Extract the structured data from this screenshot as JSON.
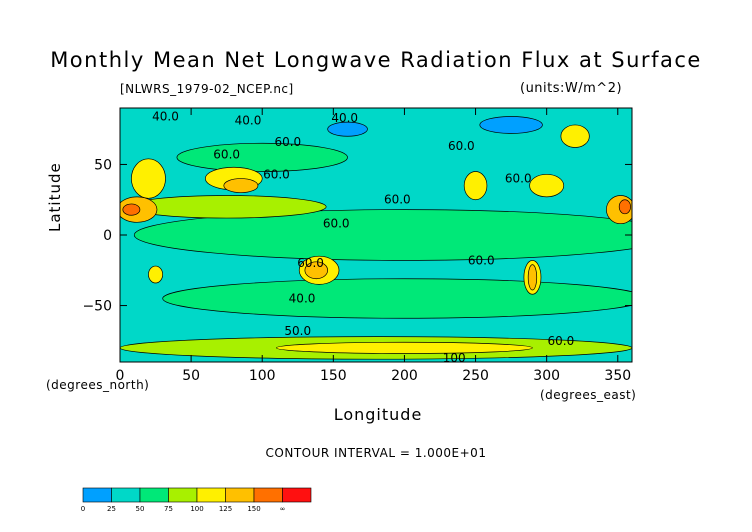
{
  "title": "Monthly Mean Net Longwave Radiation Flux at Surface",
  "subtitle_left": "[NLWRS_1979-02_NCEP.nc]",
  "subtitle_right": "(units:W/m^2)",
  "xlabel": "Longitude",
  "ylabel": "Latitude",
  "xunit": "(degrees_north)",
  "yunit": "(degrees_east)",
  "contour_interval_text": "CONTOUR INTERVAL = 1.000E+01",
  "chart_data": {
    "type": "heatmap",
    "title": "Monthly Mean Net Longwave Radiation Flux at Surface",
    "subtitle": "[NLWRS_1979-02_NCEP.nc]",
    "units": "(units:W/m^2)",
    "xlabel": "Longitude",
    "ylabel": "Latitude",
    "xlim": [
      0,
      360
    ],
    "ylim": [
      -90,
      90
    ],
    "x_ticks": [
      0,
      50,
      100,
      150,
      200,
      250,
      300,
      350
    ],
    "y_ticks": [
      50,
      0,
      -50
    ],
    "contour_interval": 10,
    "contour_labels": [
      {
        "text": "40.0",
        "lon": 32,
        "lat": 84
      },
      {
        "text": "40.0",
        "lon": 90,
        "lat": 81
      },
      {
        "text": "40.0",
        "lon": 158,
        "lat": 83
      },
      {
        "text": "60.0",
        "lon": 118,
        "lat": 66
      },
      {
        "text": "60.0",
        "lon": 240,
        "lat": 63
      },
      {
        "text": "60.0",
        "lon": 110,
        "lat": 43
      },
      {
        "text": "60.0",
        "lon": 280,
        "lat": 40
      },
      {
        "text": "60.0",
        "lon": 195,
        "lat": 25
      },
      {
        "text": "60.0",
        "lon": 152,
        "lat": 8
      },
      {
        "text": "60.0",
        "lon": 75,
        "lat": 57
      },
      {
        "text": "60.0",
        "lon": 134,
        "lat": -20
      },
      {
        "text": "60.0",
        "lon": 254,
        "lat": -18
      },
      {
        "text": "40.0",
        "lon": 128,
        "lat": -45
      },
      {
        "text": "50.0",
        "lon": 125,
        "lat": -68
      },
      {
        "text": "60.0",
        "lon": 310,
        "lat": -75
      },
      {
        "text": "100",
        "lon": 235,
        "lat": -87
      }
    ],
    "regions": [
      {
        "level": 1,
        "lon": 180,
        "lat": 0,
        "rx": 180,
        "ry": 90
      },
      {
        "level": 2,
        "lon": 200,
        "lat": 0,
        "rx": 190,
        "ry": 18
      },
      {
        "level": 2,
        "lon": 200,
        "lat": -45,
        "rx": 170,
        "ry": 14
      },
      {
        "level": 2,
        "lon": 100,
        "lat": 55,
        "rx": 60,
        "ry": 10
      },
      {
        "level": 0,
        "lon": 160,
        "lat": 75,
        "rx": 14,
        "ry": 5
      },
      {
        "level": 0,
        "lon": 275,
        "lat": 78,
        "rx": 22,
        "ry": 6
      },
      {
        "level": 3,
        "lon": 75,
        "lat": 20,
        "rx": 70,
        "ry": 8
      },
      {
        "level": 3,
        "lon": 180,
        "lat": -80,
        "rx": 180,
        "ry": 8
      },
      {
        "level": 4,
        "lon": 200,
        "lat": -80,
        "rx": 90,
        "ry": 4
      },
      {
        "level": 4,
        "lon": 20,
        "lat": 40,
        "rx": 12,
        "ry": 14
      },
      {
        "level": 4,
        "lon": 80,
        "lat": 40,
        "rx": 20,
        "ry": 8
      },
      {
        "level": 4,
        "lon": 300,
        "lat": 35,
        "rx": 12,
        "ry": 8
      },
      {
        "level": 4,
        "lon": 250,
        "lat": 35,
        "rx": 8,
        "ry": 10
      },
      {
        "level": 4,
        "lon": 320,
        "lat": 70,
        "rx": 10,
        "ry": 8
      },
      {
        "level": 4,
        "lon": 140,
        "lat": -25,
        "rx": 14,
        "ry": 10
      },
      {
        "level": 4,
        "lon": 290,
        "lat": -30,
        "rx": 6,
        "ry": 12
      },
      {
        "level": 4,
        "lon": 25,
        "lat": -28,
        "rx": 5,
        "ry": 6
      },
      {
        "level": 5,
        "lon": 12,
        "lat": 18,
        "rx": 14,
        "ry": 9
      },
      {
        "level": 5,
        "lon": 352,
        "lat": 18,
        "rx": 10,
        "ry": 10
      },
      {
        "level": 5,
        "lon": 85,
        "lat": 35,
        "rx": 12,
        "ry": 5
      },
      {
        "level": 5,
        "lon": 138,
        "lat": -25,
        "rx": 8,
        "ry": 6
      },
      {
        "level": 5,
        "lon": 290,
        "lat": -30,
        "rx": 3,
        "ry": 9
      },
      {
        "level": 6,
        "lon": 8,
        "lat": 18,
        "rx": 6,
        "ry": 4
      },
      {
        "level": 6,
        "lon": 355,
        "lat": 20,
        "rx": 4,
        "ry": 5
      }
    ],
    "legend": {
      "tick_labels": [
        "0",
        "25",
        "50",
        "75",
        "100",
        "125",
        "150",
        "∞"
      ],
      "colors": [
        "#00a0ff",
        "#00d8c8",
        "#00e878",
        "#a8f000",
        "#fff000",
        "#ffc000",
        "#ff7000",
        "#ff1010"
      ]
    }
  }
}
